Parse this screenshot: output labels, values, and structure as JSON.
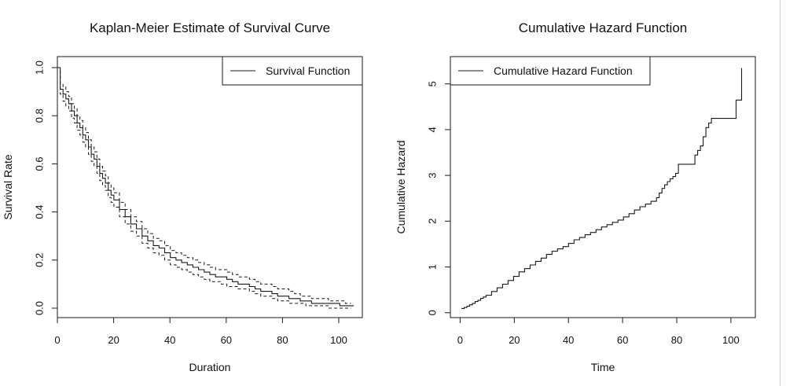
{
  "colors": {
    "line": "#1a1a1a",
    "background": "#ffffff"
  },
  "chart_data": [
    {
      "type": "line",
      "step": true,
      "title": "Kaplan-Meier Estimate of Survival Curve",
      "xlabel": "Duration",
      "ylabel": "Survival Rate",
      "xlim": [
        0,
        108
      ],
      "ylim": [
        0,
        1
      ],
      "xticks": [
        "0",
        "20",
        "40",
        "60",
        "80",
        "100"
      ],
      "yticks": [
        "0.0",
        "0.2",
        "0.4",
        "0.6",
        "0.8",
        "1.0"
      ],
      "legend": {
        "placement": "top-right",
        "entries": [
          "Survival Function"
        ]
      },
      "grid": false,
      "series": [
        {
          "name": "Survival Function",
          "style": "solid",
          "x": [
            0,
            1,
            2,
            3,
            4,
            5,
            6,
            7,
            8,
            9,
            10,
            11,
            12,
            13,
            14,
            15,
            16,
            17,
            18,
            19,
            20,
            22,
            24,
            26,
            28,
            30,
            32,
            34,
            36,
            38,
            40,
            42,
            44,
            46,
            48,
            50,
            52,
            54,
            56,
            58,
            60,
            62,
            64,
            66,
            68,
            70,
            72,
            74,
            76,
            78,
            80,
            82,
            84,
            86,
            88,
            90,
            92,
            94,
            96,
            98,
            100,
            102,
            104,
            105
          ],
          "y": [
            1.0,
            0.91,
            0.89,
            0.87,
            0.85,
            0.82,
            0.8,
            0.77,
            0.75,
            0.72,
            0.7,
            0.67,
            0.64,
            0.62,
            0.59,
            0.56,
            0.54,
            0.52,
            0.49,
            0.47,
            0.45,
            0.41,
            0.38,
            0.35,
            0.33,
            0.3,
            0.28,
            0.26,
            0.25,
            0.23,
            0.21,
            0.2,
            0.19,
            0.18,
            0.17,
            0.16,
            0.15,
            0.14,
            0.13,
            0.13,
            0.12,
            0.11,
            0.1,
            0.1,
            0.09,
            0.08,
            0.07,
            0.07,
            0.06,
            0.05,
            0.05,
            0.04,
            0.04,
            0.03,
            0.03,
            0.02,
            0.02,
            0.02,
            0.02,
            0.02,
            0.01,
            0.01,
            0.01,
            0.01
          ]
        },
        {
          "style": "dashed",
          "x": [
            0,
            1,
            2,
            3,
            4,
            5,
            6,
            7,
            8,
            9,
            10,
            11,
            12,
            13,
            14,
            15,
            16,
            17,
            18,
            19,
            20,
            22,
            24,
            26,
            28,
            30,
            32,
            34,
            36,
            38,
            40,
            42,
            44,
            46,
            48,
            50,
            52,
            54,
            56,
            58,
            60,
            62,
            64,
            66,
            68,
            70,
            72,
            74,
            76,
            78,
            80,
            82,
            84,
            86,
            88,
            90,
            92,
            94,
            96,
            98,
            100,
            102,
            104
          ],
          "y": [
            1.0,
            0.93,
            0.92,
            0.9,
            0.88,
            0.85,
            0.83,
            0.8,
            0.78,
            0.75,
            0.73,
            0.7,
            0.67,
            0.65,
            0.62,
            0.59,
            0.57,
            0.55,
            0.52,
            0.5,
            0.48,
            0.44,
            0.41,
            0.38,
            0.36,
            0.33,
            0.31,
            0.29,
            0.28,
            0.26,
            0.24,
            0.23,
            0.22,
            0.21,
            0.2,
            0.19,
            0.18,
            0.17,
            0.16,
            0.16,
            0.15,
            0.14,
            0.13,
            0.13,
            0.12,
            0.11,
            0.1,
            0.1,
            0.09,
            0.08,
            0.08,
            0.07,
            0.06,
            0.05,
            0.05,
            0.04,
            0.04,
            0.04,
            0.03,
            0.03,
            0.03,
            0.02,
            0.02
          ]
        },
        {
          "style": "dashed",
          "x": [
            0,
            1,
            2,
            3,
            4,
            5,
            6,
            7,
            8,
            9,
            10,
            11,
            12,
            13,
            14,
            15,
            16,
            17,
            18,
            19,
            20,
            22,
            24,
            26,
            28,
            30,
            32,
            34,
            36,
            38,
            40,
            42,
            44,
            46,
            48,
            50,
            52,
            54,
            56,
            58,
            60,
            62,
            64,
            66,
            68,
            70,
            72,
            74,
            76,
            78,
            80,
            82,
            84,
            86,
            88,
            90,
            92,
            94,
            96,
            98,
            100,
            102,
            104
          ],
          "y": [
            1.0,
            0.89,
            0.86,
            0.84,
            0.82,
            0.79,
            0.77,
            0.74,
            0.72,
            0.69,
            0.67,
            0.64,
            0.61,
            0.59,
            0.56,
            0.53,
            0.51,
            0.49,
            0.46,
            0.44,
            0.42,
            0.38,
            0.35,
            0.32,
            0.3,
            0.27,
            0.25,
            0.23,
            0.22,
            0.2,
            0.18,
            0.17,
            0.16,
            0.15,
            0.14,
            0.13,
            0.12,
            0.11,
            0.11,
            0.1,
            0.09,
            0.09,
            0.08,
            0.08,
            0.07,
            0.06,
            0.05,
            0.05,
            0.04,
            0.03,
            0.03,
            0.02,
            0.02,
            0.02,
            0.01,
            0.01,
            0.01,
            0.01,
            0.0,
            0.0,
            0.0,
            0.0,
            0.0
          ]
        }
      ]
    },
    {
      "type": "line",
      "step": true,
      "title": "Cumulative Hazard Function",
      "xlabel": "Time",
      "ylabel": "Cumulative Hazard",
      "xlim": [
        -3,
        108
      ],
      "ylim": [
        -0.1,
        5.6
      ],
      "xticks": [
        "0",
        "20",
        "40",
        "60",
        "80",
        "100"
      ],
      "yticks": [
        "0",
        "1",
        "2",
        "3",
        "4",
        "5"
      ],
      "legend": {
        "placement": "top-left",
        "entries": [
          "Cumulative Hazard Function"
        ]
      },
      "grid": false,
      "series": [
        {
          "name": "Cumulative Hazard Function",
          "style": "solid",
          "x": [
            1,
            2,
            3,
            4,
            5,
            6,
            7,
            8,
            9,
            10,
            12,
            14,
            16,
            18,
            20,
            22,
            24,
            26,
            28,
            30,
            32,
            34,
            36,
            38,
            40,
            42,
            44,
            46,
            48,
            50,
            52,
            54,
            56,
            58,
            60,
            62,
            64,
            66,
            68,
            70,
            72,
            73,
            74,
            75,
            76,
            77,
            78,
            79,
            80,
            81,
            82,
            84,
            86,
            87,
            88,
            89,
            90,
            91,
            92,
            96,
            101,
            102,
            103
          ],
          "y": [
            0.1,
            0.12,
            0.15,
            0.18,
            0.21,
            0.25,
            0.28,
            0.32,
            0.35,
            0.39,
            0.47,
            0.55,
            0.63,
            0.71,
            0.8,
            0.9,
            0.97,
            1.05,
            1.13,
            1.2,
            1.28,
            1.35,
            1.4,
            1.45,
            1.52,
            1.6,
            1.65,
            1.71,
            1.76,
            1.82,
            1.88,
            1.93,
            1.98,
            2.03,
            2.1,
            2.17,
            2.25,
            2.32,
            2.38,
            2.44,
            2.52,
            2.62,
            2.72,
            2.8,
            2.87,
            2.93,
            2.98,
            3.05,
            3.25,
            3.25,
            3.25,
            3.25,
            3.45,
            3.55,
            3.65,
            3.85,
            4.05,
            4.15,
            4.25,
            4.25,
            4.65,
            4.65,
            5.35
          ]
        }
      ]
    }
  ]
}
